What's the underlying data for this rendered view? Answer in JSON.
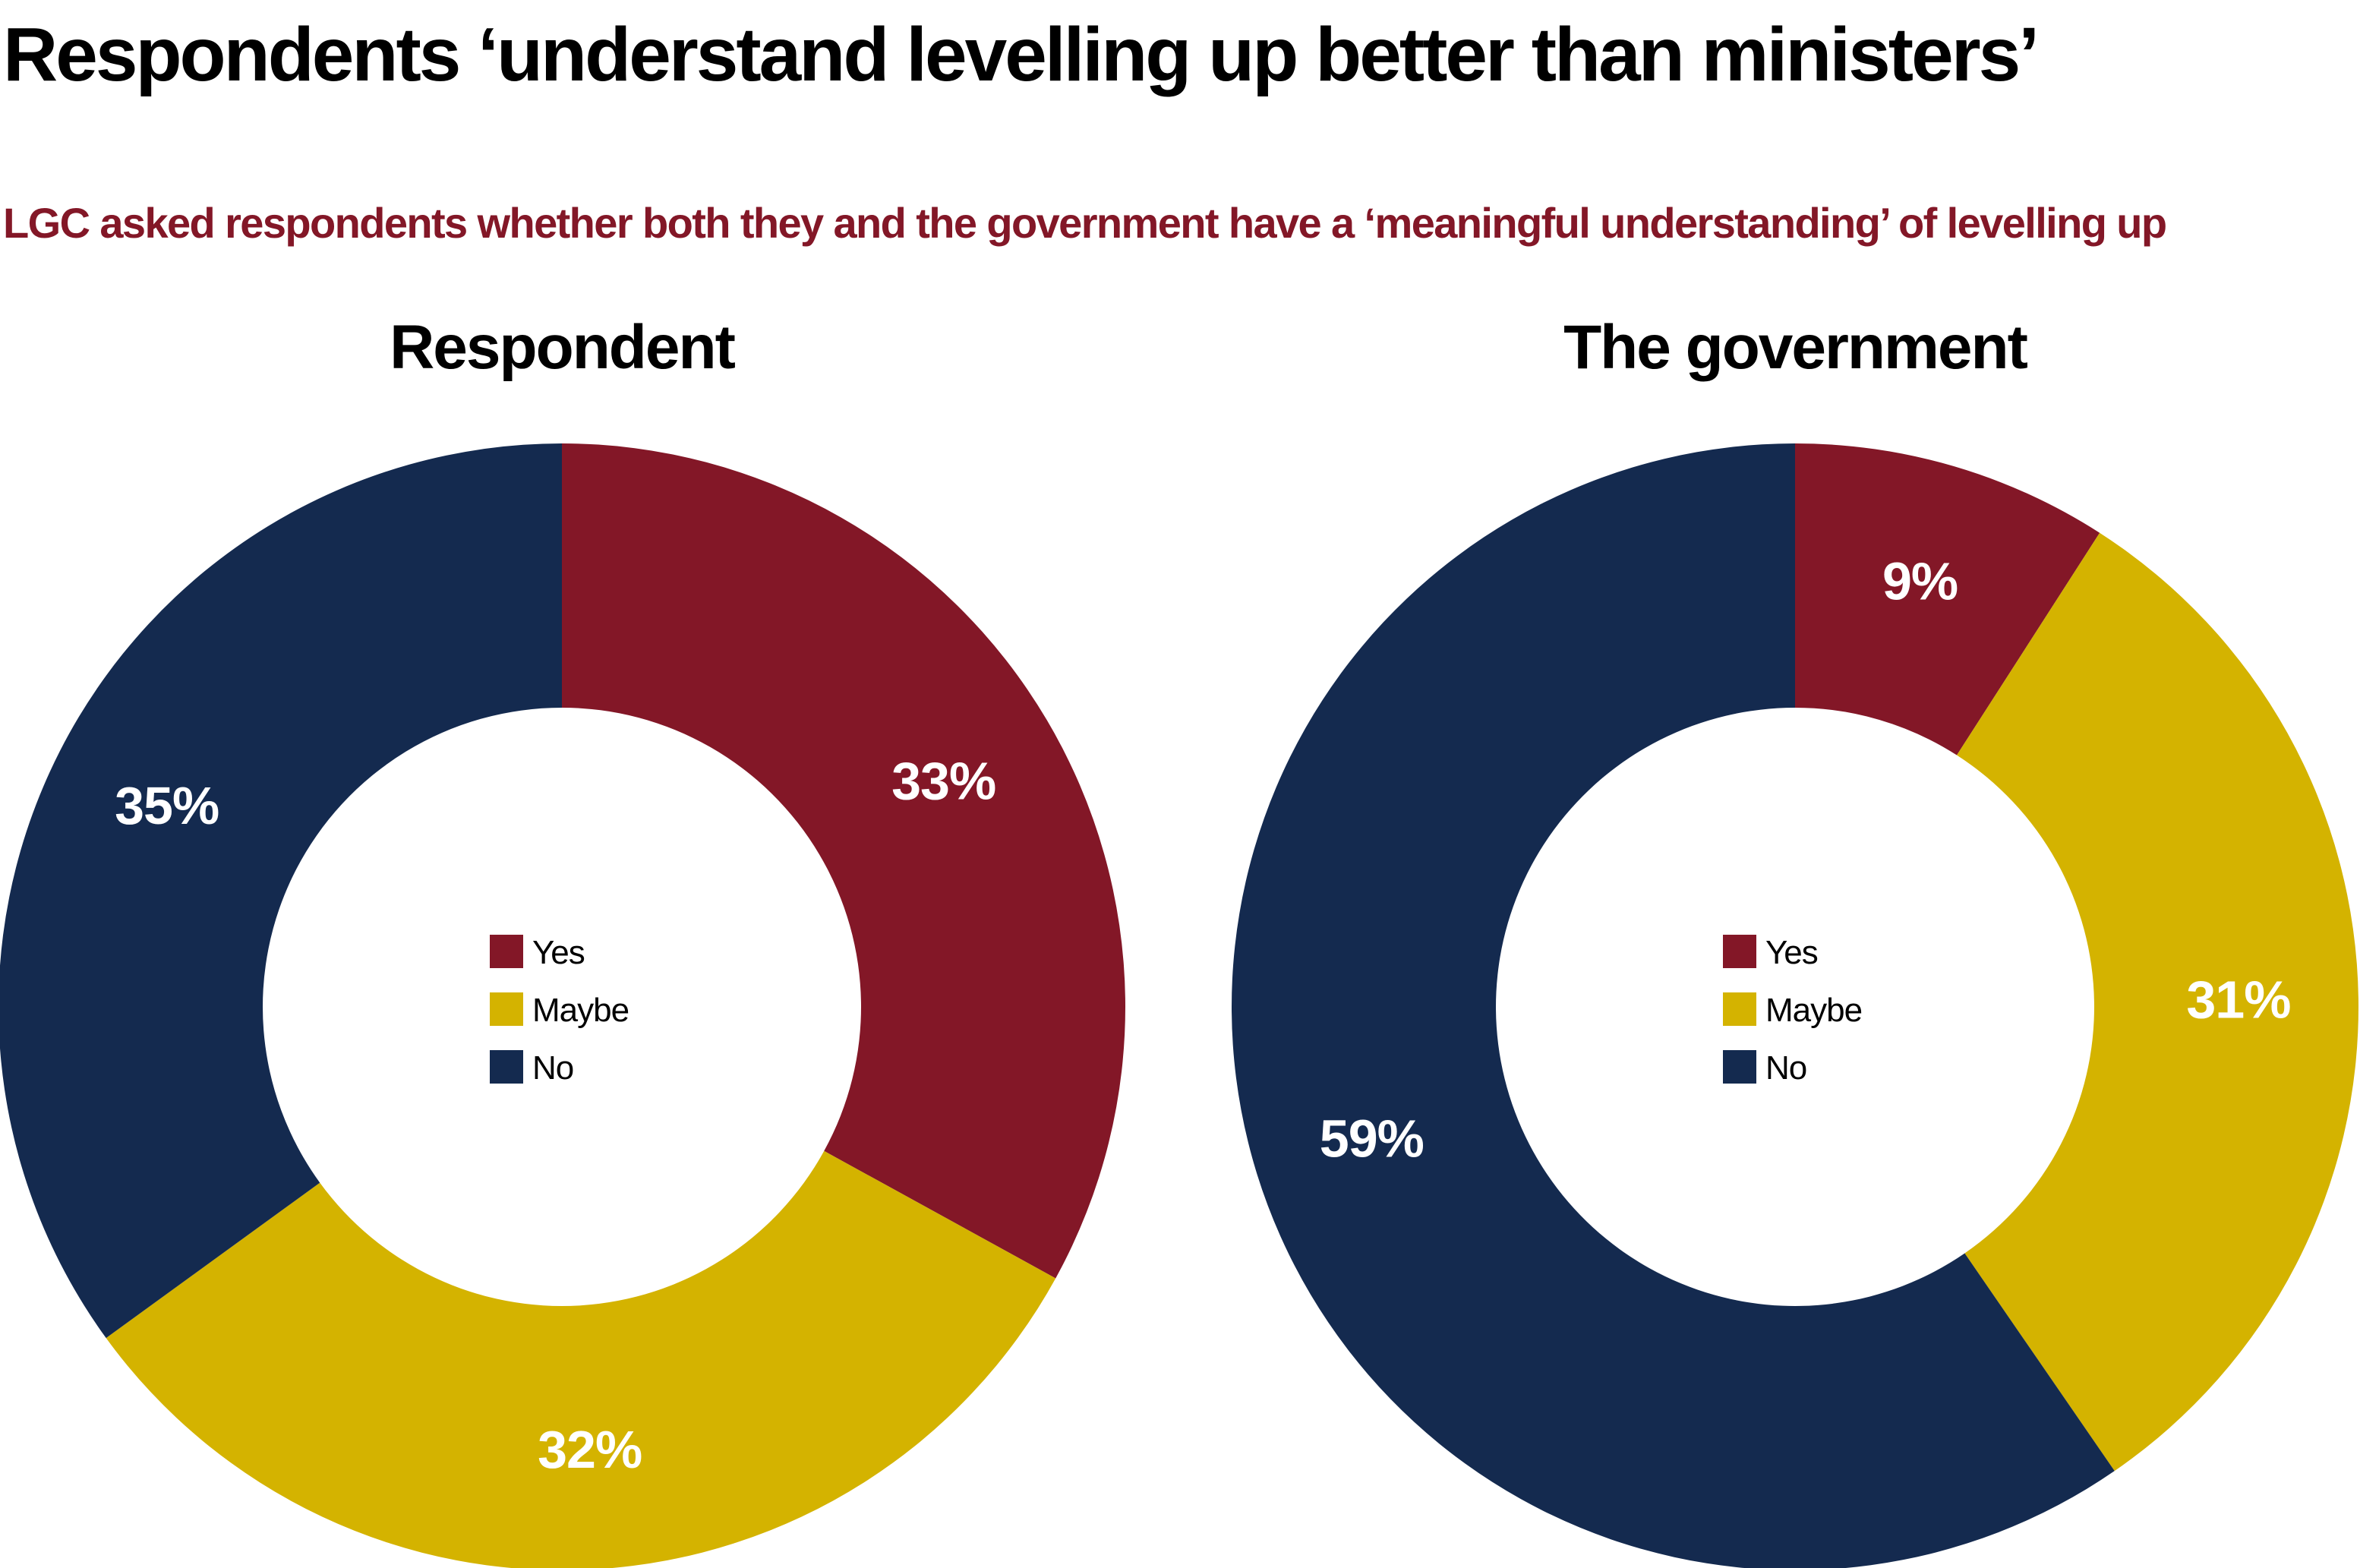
{
  "title": "Respondents ‘understand levelling up better than ministers’",
  "subtitle": "LGC asked respondents whether both they and the government have a ‘meaningful understanding’ of levelling up",
  "chart_data": [
    {
      "type": "pie",
      "title": "Respondent",
      "categories": [
        "Yes",
        "Maybe",
        "No"
      ],
      "values": [
        33,
        32,
        35
      ],
      "labels": [
        "33%",
        "32%",
        "35%"
      ],
      "colors": [
        "#831727",
        "#D4B300",
        "#142A4F"
      ],
      "donut": true,
      "legend": "center"
    },
    {
      "type": "pie",
      "title": "The government",
      "categories": [
        "Yes",
        "Maybe",
        "No"
      ],
      "values": [
        9,
        31,
        59
      ],
      "labels": [
        "9%",
        "31%",
        "59%"
      ],
      "colors": [
        "#831727",
        "#D4B300",
        "#142A4F"
      ],
      "donut": true,
      "legend": "center"
    }
  ]
}
